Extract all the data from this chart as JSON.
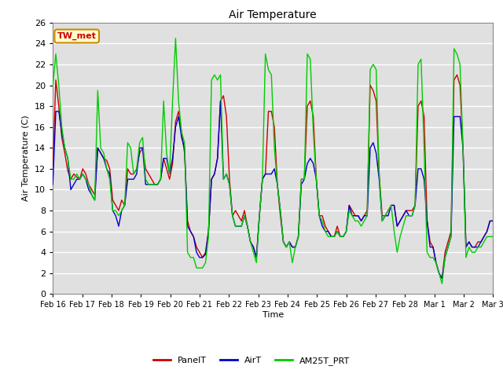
{
  "title": "Air Temperature",
  "xlabel": "Time",
  "ylabel": "Air Temperature (C)",
  "ylim": [
    0,
    26
  ],
  "yticks": [
    0,
    2,
    4,
    6,
    8,
    10,
    12,
    14,
    16,
    18,
    20,
    22,
    24,
    26
  ],
  "xtick_labels": [
    "Feb 16",
    "Feb 17",
    "Feb 18",
    "Feb 19",
    "Feb 20",
    "Feb 21",
    "Feb 22",
    "Feb 23",
    "Feb 24",
    "Feb 25",
    "Feb 26",
    "Feb 27",
    "Feb 28",
    "Mar 1",
    "Mar 2",
    "Mar 3"
  ],
  "annotation_text": "TW_met",
  "annotation_color": "#cc0000",
  "annotation_bg": "#ffffcc",
  "annotation_border": "#cc8800",
  "background_color": "#e0e0e0",
  "grid_color": "#ffffff",
  "line_colors": {
    "PanelT": "#cc0000",
    "AirT": "#0000cc",
    "AM25T_PRT": "#00cc00"
  },
  "legend_labels": [
    "PanelT",
    "AirT",
    "AM25T_PRT"
  ],
  "PanelT": [
    12.2,
    20.5,
    18.0,
    15.0,
    13.5,
    11.8,
    11.0,
    11.5,
    11.2,
    11.0,
    12.0,
    11.5,
    10.5,
    10.0,
    9.5,
    14.0,
    13.5,
    13.0,
    12.8,
    12.0,
    9.0,
    8.5,
    8.0,
    9.0,
    8.5,
    12.0,
    11.5,
    11.5,
    12.0,
    13.5,
    14.0,
    12.0,
    11.5,
    11.0,
    10.5,
    10.5,
    11.0,
    13.0,
    12.0,
    11.0,
    12.5,
    16.5,
    17.5,
    15.5,
    13.5,
    7.0,
    6.0,
    5.5,
    4.5,
    4.0,
    3.5,
    4.0,
    6.0,
    11.0,
    11.5,
    13.0,
    18.5,
    19.0,
    17.0,
    11.0,
    7.5,
    8.0,
    7.5,
    7.0,
    8.0,
    6.5,
    5.0,
    4.5,
    3.5,
    7.5,
    11.0,
    11.5,
    17.5,
    17.5,
    16.0,
    10.5,
    7.5,
    5.0,
    4.5,
    5.0,
    4.5,
    4.5,
    5.5,
    11.0,
    11.0,
    18.0,
    18.5,
    17.0,
    11.0,
    7.5,
    7.5,
    6.5,
    6.0,
    5.5,
    5.5,
    6.5,
    5.5,
    5.5,
    6.0,
    8.5,
    8.0,
    7.5,
    7.5,
    7.0,
    7.5,
    8.0,
    20.0,
    19.5,
    18.5,
    11.5,
    7.5,
    7.5,
    8.0,
    8.5,
    8.5,
    6.5,
    7.0,
    7.5,
    8.0,
    8.0,
    8.0,
    8.5,
    18.0,
    18.5,
    17.0,
    7.0,
    5.0,
    4.5,
    3.0,
    2.0,
    1.5,
    4.0,
    5.0,
    6.0,
    20.5,
    21.0,
    20.0,
    14.0,
    4.5,
    5.0,
    4.5,
    4.5,
    5.0,
    5.0,
    5.5,
    6.0,
    7.0,
    7.0
  ],
  "AirT": [
    10.5,
    17.5,
    17.5,
    15.5,
    14.0,
    13.0,
    10.0,
    10.5,
    11.0,
    11.0,
    11.5,
    11.0,
    10.0,
    9.5,
    9.0,
    14.0,
    13.5,
    13.0,
    12.0,
    11.5,
    8.0,
    7.5,
    6.5,
    8.0,
    8.5,
    11.0,
    11.0,
    11.0,
    11.5,
    14.0,
    14.0,
    10.5,
    10.5,
    10.5,
    10.5,
    10.5,
    11.0,
    13.0,
    13.0,
    11.5,
    13.0,
    16.0,
    17.0,
    15.0,
    14.0,
    6.5,
    6.0,
    5.5,
    4.0,
    3.5,
    3.5,
    3.8,
    6.0,
    11.0,
    11.5,
    13.0,
    18.5,
    11.0,
    11.5,
    10.5,
    7.5,
    6.5,
    6.5,
    6.5,
    7.5,
    6.5,
    5.0,
    4.5,
    3.5,
    7.5,
    11.0,
    11.5,
    11.5,
    11.5,
    12.0,
    10.5,
    8.0,
    5.0,
    4.5,
    5.0,
    4.5,
    4.5,
    5.5,
    10.5,
    11.0,
    12.5,
    13.0,
    12.5,
    11.0,
    7.5,
    6.5,
    6.0,
    6.0,
    5.5,
    5.5,
    6.0,
    5.5,
    5.5,
    6.0,
    8.5,
    7.5,
    7.5,
    7.5,
    7.0,
    7.5,
    7.5,
    14.0,
    14.5,
    13.5,
    11.0,
    7.0,
    7.5,
    7.5,
    8.5,
    8.5,
    6.5,
    7.0,
    7.5,
    8.0,
    7.5,
    7.5,
    8.5,
    12.0,
    12.0,
    11.0,
    7.0,
    4.5,
    4.5,
    3.0,
    2.0,
    1.5,
    3.5,
    4.5,
    5.5,
    17.0,
    17.0,
    17.0,
    14.0,
    4.5,
    5.0,
    4.5,
    4.5,
    4.5,
    5.0,
    5.5,
    6.0,
    7.0,
    7.0
  ],
  "AM25T_PRT": [
    20.0,
    23.0,
    20.0,
    16.0,
    14.0,
    13.0,
    11.0,
    11.0,
    11.5,
    11.0,
    11.5,
    11.0,
    10.5,
    9.5,
    9.0,
    19.5,
    14.0,
    13.5,
    12.0,
    11.0,
    8.0,
    8.0,
    7.5,
    8.0,
    8.5,
    14.5,
    14.0,
    11.5,
    12.0,
    14.5,
    15.0,
    11.0,
    10.5,
    10.5,
    10.5,
    10.5,
    11.0,
    18.5,
    13.5,
    11.5,
    18.5,
    24.5,
    18.5,
    15.5,
    14.5,
    4.0,
    3.5,
    3.5,
    2.5,
    2.5,
    2.5,
    3.0,
    5.5,
    20.5,
    21.0,
    20.5,
    21.0,
    11.0,
    11.5,
    10.5,
    7.5,
    6.5,
    6.5,
    6.5,
    7.5,
    6.5,
    5.0,
    4.0,
    3.0,
    7.5,
    11.0,
    23.0,
    21.5,
    21.0,
    14.0,
    10.5,
    8.0,
    5.0,
    4.5,
    5.0,
    3.0,
    4.5,
    5.5,
    11.0,
    11.0,
    23.0,
    22.5,
    15.5,
    11.0,
    7.5,
    7.0,
    6.0,
    5.5,
    5.5,
    5.5,
    6.0,
    5.5,
    5.5,
    6.0,
    8.0,
    7.5,
    7.0,
    7.0,
    6.5,
    7.0,
    7.5,
    21.5,
    22.0,
    21.5,
    11.5,
    7.0,
    7.5,
    8.0,
    8.5,
    6.0,
    4.0,
    5.5,
    6.5,
    7.5,
    7.5,
    7.5,
    8.5,
    22.0,
    22.5,
    14.0,
    4.0,
    3.5,
    3.5,
    3.0,
    2.0,
    1.0,
    3.5,
    4.5,
    5.5,
    23.5,
    23.0,
    22.0,
    14.0,
    3.5,
    4.5,
    4.0,
    4.0,
    4.5,
    4.5,
    5.0,
    5.5,
    5.5,
    5.5
  ]
}
